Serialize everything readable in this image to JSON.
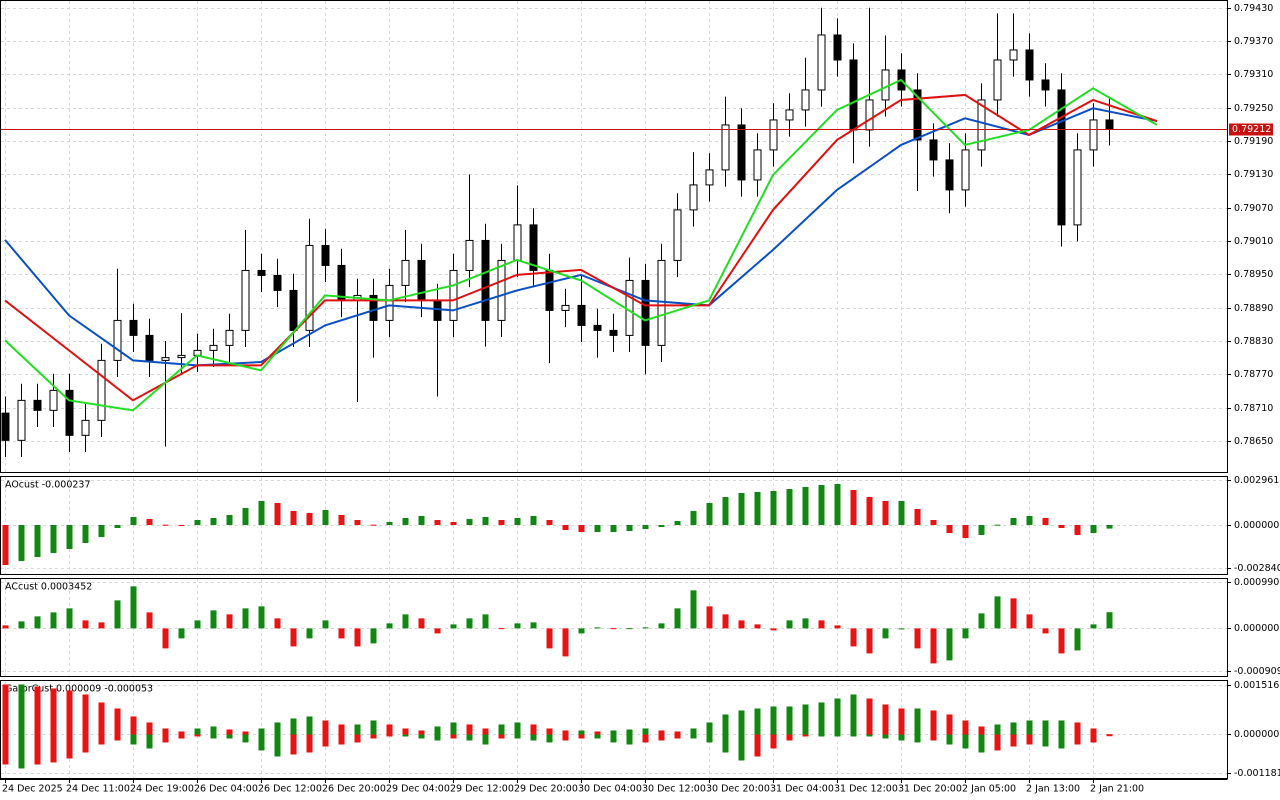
{
  "time_axis": {
    "labels": [
      "24 Dec 2025",
      "24 Dec 11:00",
      "24 Dec 19:00",
      "26 Dec 04:00",
      "26 Dec 12:00",
      "26 Dec 20:00",
      "29 Dec 04:00",
      "29 Dec 12:00",
      "29 Dec 20:00",
      "30 Dec 04:00",
      "30 Dec 12:00",
      "30 Dec 20:00",
      "31 Dec 04:00",
      "31 Dec 12:00",
      "31 Dec 20:00",
      "2 Jan 05:00",
      "2 Jan 13:00",
      "2 Jan 21:00"
    ]
  },
  "chart_data": [
    {
      "type": "candlestick",
      "ylim": [
        0.78594,
        0.79444
      ],
      "yticks": [
        {
          "value": 0.7943,
          "label": "0.79430"
        },
        {
          "value": 0.7937,
          "label": "0.79370"
        },
        {
          "value": 0.7931,
          "label": "0.79310"
        },
        {
          "value": 0.7925,
          "label": "0.79250"
        },
        {
          "value": 0.7919,
          "label": "0.79190"
        },
        {
          "value": 0.7913,
          "label": "0.79130"
        },
        {
          "value": 0.7907,
          "label": "0.79070"
        },
        {
          "value": 0.7901,
          "label": "0.79010"
        },
        {
          "value": 0.7895,
          "label": "0.78950"
        },
        {
          "value": 0.7889,
          "label": "0.78890"
        },
        {
          "value": 0.7883,
          "label": "0.78830"
        },
        {
          "value": 0.7877,
          "label": "0.78770"
        },
        {
          "value": 0.7871,
          "label": "0.78710"
        },
        {
          "value": 0.7865,
          "label": "0.78650"
        }
      ],
      "grid": true,
      "up_color": "#ffffff",
      "down_color": "#000000",
      "open": [
        0.787,
        0.78651,
        0.78723,
        0.78705,
        0.78741,
        0.7866,
        0.78687,
        0.78795,
        0.78867,
        0.7884,
        0.78795,
        0.788,
        0.78804,
        0.78813,
        0.78822,
        0.78849,
        0.78957,
        0.78948,
        0.78921,
        0.78849,
        0.79002,
        0.78966,
        0.78903,
        0.78912,
        0.78867,
        0.7893,
        0.78975,
        0.78903,
        0.78867,
        0.78957,
        0.79011,
        0.78867,
        0.78975,
        0.79039,
        0.78957,
        0.78885,
        0.78894,
        0.78858,
        0.78849,
        0.7884,
        0.78939,
        0.78822,
        0.78975,
        0.79066,
        0.79111,
        0.79138,
        0.79219,
        0.7912,
        0.79174,
        0.79228,
        0.79246,
        0.79282,
        0.79381,
        0.79336,
        0.7921,
        0.79264,
        0.79318,
        0.79282,
        0.79192,
        0.79156,
        0.79102,
        0.79174,
        0.79264,
        0.79336,
        0.79354,
        0.793,
        0.79282,
        0.79039,
        0.79174,
        0.79228
      ],
      "high": [
        0.7873,
        0.78753,
        0.78753,
        0.78771,
        0.78771,
        0.78717,
        0.78825,
        0.7896,
        0.78897,
        0.7887,
        0.7883,
        0.7888,
        0.78843,
        0.78852,
        0.78879,
        0.7903,
        0.78987,
        0.78978,
        0.78951,
        0.7905,
        0.79032,
        0.78996,
        0.78942,
        0.78942,
        0.7896,
        0.7903,
        0.79005,
        0.78933,
        0.78987,
        0.7913,
        0.79041,
        0.79005,
        0.7911,
        0.79069,
        0.78987,
        0.78924,
        0.7895,
        0.78888,
        0.78879,
        0.7898,
        0.78969,
        0.79005,
        0.79096,
        0.7917,
        0.79168,
        0.7927,
        0.79249,
        0.79204,
        0.79258,
        0.79276,
        0.7934,
        0.7943,
        0.79411,
        0.79366,
        0.7943,
        0.7938,
        0.79348,
        0.79312,
        0.79222,
        0.79186,
        0.79204,
        0.79294,
        0.7942,
        0.7942,
        0.79384,
        0.7933,
        0.79312,
        0.79204,
        0.79258,
        0.7927
      ],
      "low": [
        0.78621,
        0.78621,
        0.78675,
        0.78675,
        0.7863,
        0.7863,
        0.78657,
        0.78765,
        0.7881,
        0.78765,
        0.7864,
        0.7877,
        0.78774,
        0.78783,
        0.78792,
        0.78819,
        0.78918,
        0.78891,
        0.78819,
        0.78819,
        0.78936,
        0.78873,
        0.7872,
        0.788,
        0.78837,
        0.789,
        0.78873,
        0.7873,
        0.78837,
        0.78927,
        0.7882,
        0.78837,
        0.78945,
        0.78927,
        0.7879,
        0.78855,
        0.78828,
        0.788,
        0.7881,
        0.7881,
        0.7877,
        0.78792,
        0.78945,
        0.79036,
        0.79081,
        0.79108,
        0.7909,
        0.7909,
        0.79144,
        0.79198,
        0.79216,
        0.79252,
        0.79306,
        0.7915,
        0.7918,
        0.79234,
        0.79252,
        0.791,
        0.79126,
        0.7906,
        0.79072,
        0.79144,
        0.79234,
        0.79306,
        0.7927,
        0.79252,
        0.79,
        0.79009,
        0.79144,
        0.79182
      ],
      "close": [
        0.78651,
        0.78723,
        0.78705,
        0.78741,
        0.7866,
        0.78687,
        0.78795,
        0.78867,
        0.7884,
        0.78795,
        0.788,
        0.78804,
        0.78813,
        0.78822,
        0.78849,
        0.78957,
        0.78948,
        0.78921,
        0.78849,
        0.79002,
        0.78966,
        0.78903,
        0.78912,
        0.78867,
        0.7893,
        0.78975,
        0.78903,
        0.78867,
        0.78957,
        0.79011,
        0.78867,
        0.78975,
        0.79039,
        0.78957,
        0.78885,
        0.78894,
        0.78858,
        0.78849,
        0.7884,
        0.78939,
        0.78822,
        0.78975,
        0.79066,
        0.79111,
        0.79138,
        0.79219,
        0.7912,
        0.79174,
        0.79228,
        0.79246,
        0.79282,
        0.79381,
        0.79336,
        0.7921,
        0.79264,
        0.79318,
        0.79282,
        0.79192,
        0.79156,
        0.79102,
        0.79174,
        0.79264,
        0.79336,
        0.79354,
        0.793,
        0.79282,
        0.79039,
        0.79174,
        0.79228,
        0.79212
      ],
      "lines": [
        {
          "color": "#0b4fc4",
          "x": [
            0,
            4,
            8,
            12,
            16,
            20,
            24,
            28,
            32,
            36,
            40,
            44,
            48,
            52,
            56,
            60,
            64,
            68,
            72
          ],
          "values": [
            0.79012,
            0.78876,
            0.78795,
            0.78786,
            0.78792,
            0.78858,
            0.78894,
            0.78885,
            0.78921,
            0.78949,
            0.78903,
            0.78894,
            0.78994,
            0.79102,
            0.79183,
            0.79231,
            0.79201,
            0.79249,
            0.79226
          ]
        },
        {
          "color": "#e01010",
          "x": [
            0,
            4,
            8,
            12,
            16,
            20,
            24,
            28,
            32,
            36,
            40,
            44,
            48,
            52,
            56,
            60,
            64,
            68,
            72
          ],
          "values": [
            0.78903,
            0.78813,
            0.78723,
            0.78786,
            0.78786,
            0.78903,
            0.78903,
            0.78903,
            0.78949,
            0.78958,
            0.78894,
            0.78894,
            0.79066,
            0.79192,
            0.79264,
            0.79273,
            0.79201,
            0.79264,
            0.79226
          ]
        },
        {
          "color": "#22dd22",
          "x": [
            0,
            4,
            8,
            12,
            16,
            20,
            24,
            28,
            32,
            36,
            40,
            44,
            48,
            52,
            56,
            60,
            64,
            68,
            72
          ],
          "values": [
            0.78831,
            0.78723,
            0.78705,
            0.78804,
            0.78777,
            0.78912,
            0.78903,
            0.7893,
            0.78976,
            0.78939,
            0.78867,
            0.78903,
            0.79129,
            0.79246,
            0.793,
            0.79183,
            0.7921,
            0.79285,
            0.79219
          ]
        }
      ],
      "current_price": {
        "value": 0.79212,
        "label": "0.79212",
        "color": "#c81010"
      }
    },
    {
      "type": "bar",
      "title": "AOcust -0.000237",
      "ylim": [
        -0.00323,
        0.00323
      ],
      "yticks": [
        0.002961,
        {
          "value": 0,
          "label": "0.000000"
        },
        {
          "value": -0.00284,
          "label": "-0.002840"
        }
      ],
      "up_color": "#118811",
      "down_color": "#ee1111",
      "values": [
        -0.002636,
        -0.002372,
        -0.002109,
        -0.001845,
        -0.001582,
        -0.001186,
        -0.000791,
        -0.000198,
        0.000527,
        0.000395,
        2e-05,
        -6.6e-05,
        0.00033,
        0.000461,
        0.000659,
        0.00112,
        0.001582,
        0.00145,
        0.000923,
        0.000791,
        0.000989,
        0.000659,
        0.00033,
        2e-05,
        0.000198,
        0.000461,
        0.000593,
        0.00033,
        0.000198,
        0.000395,
        0.000527,
        0.00033,
        0.000461,
        0.000593,
        0.00033,
        -0.00033,
        -0.000461,
        -0.000461,
        -0.000461,
        -0.000395,
        -0.000264,
        -0.000132,
        0.000264,
        0.000923,
        0.00145,
        0.001845,
        0.002109,
        0.002175,
        0.002241,
        0.002372,
        0.002504,
        0.002636,
        0.002702,
        0.002307,
        0.001845,
        0.001582,
        0.001582,
        0.001054,
        0.00033,
        -0.000527,
        -0.000857,
        -0.000659,
        2e-05,
        0.000461,
        0.000593,
        0.000461,
        -0.000198,
        -0.000659,
        -0.000527,
        -0.000237
      ]
    },
    {
      "type": "bar",
      "title": "ACcust 0.0003452",
      "ylim": [
        -0.001016,
        0.001075
      ],
      "yticks": [
        0.0009902,
        {
          "value": 0,
          "label": "0.0000000"
        },
        -0.0009095
      ],
      "up_color": "#118811",
      "down_color": "#ee1111",
      "values": [
        6.4e-05,
        0.0001494,
        0.0002562,
        0.0003416,
        0.000427,
        0.0001708,
        0.0001281,
        0.0005978,
        0.0008967,
        0.0003416,
        -0.000427,
        -0.0002135,
        0.0001708,
        0.0003843,
        0.0002989,
        0.000427,
        0.0004697,
        0.0002135,
        -0.0003843,
        -0.0002135,
        0.0001708,
        -0.0002135,
        -0.0003843,
        -0.0003203,
        0.0001068,
        0.0002989,
        0.0002135,
        -0.0001068,
        8.54e-05,
        0.0002135,
        0.0002989,
        5e-06,
        0.0001068,
        0.0001281,
        -0.000427,
        -0.0005978,
        -0.0001068,
        2.14e-05,
        5e-06,
        5e-06,
        2.14e-05,
        0.0001068,
        0.000427,
        0.0008113,
        0.0004697,
        0.0002989,
        0.0001708,
        8.54e-05,
        -4.27e-05,
        0.0001708,
        0.0002135,
        0.0001708,
        6.4e-05,
        -0.0003843,
        -0.0005338,
        -0.0002135,
        -2.14e-05,
        -0.000427,
        -0.0007473,
        -0.0006832,
        -0.0002135,
        0.0003203,
        0.0006832,
        0.0006405,
        0.0002989,
        -0.0001068,
        -0.0005338,
        -0.0004697,
        8.54e-05,
        0.0003452
      ]
    },
    {
      "type": "gator",
      "title": "GatorCust 0.000009 -0.000053",
      "ylim": [
        -0.001334,
        0.00167
      ],
      "yticks": [
        0.001516,
        {
          "value": 0,
          "label": "0.000000"
        },
        -0.001181
      ],
      "up_color": "#118811",
      "down_color": "#ee1111",
      "upper": [
        0.001533,
        0.001533,
        0.001471,
        0.00141,
        0.001349,
        0.001226,
        0.000981,
        0.000797,
        0.000552,
        0.000368,
        0.000184,
        9.2e-05,
        0.000184,
        0.000245,
        0.000153,
        9.2e-05,
        0.000184,
        0.000368,
        0.00049,
        0.000552,
        0.000429,
        0.000307,
        0.000307,
        0.000429,
        0.000307,
        0.000184,
        0.000123,
        0.000245,
        0.000368,
        0.000307,
        0.000184,
        0.000307,
        0.000368,
        0.000307,
        0.000184,
        0.000123,
        0.000123,
        9.2e-05,
        0.000123,
        0.000153,
        0.000184,
        0.000123,
        9.2e-05,
        0.000184,
        0.000368,
        0.000613,
        0.000736,
        0.000797,
        0.000858,
        0.000858,
        0.00092,
        0.000981,
        0.001103,
        0.001226,
        0.001103,
        0.00092,
        0.000797,
        0.000797,
        0.000736,
        0.000613,
        0.000429,
        0.000245,
        0.000307,
        0.000368,
        0.000429,
        0.000429,
        0.000429,
        0.000368,
        0.000184,
        9e-06
      ],
      "lower": [
        -0.00092,
        -0.001042,
        -0.00092,
        -0.000858,
        -0.000736,
        -0.000552,
        -0.000307,
        -0.000184,
        -0.000307,
        -0.000429,
        -0.000245,
        -0.000123,
        -6.1e-05,
        -0.000123,
        -0.000123,
        -0.000245,
        -0.00049,
        -0.000674,
        -0.000613,
        -0.000552,
        -0.000368,
        -0.000307,
        -0.000245,
        -0.000123,
        -6.1e-05,
        -6.1e-05,
        -0.000123,
        -0.000184,
        -0.000123,
        -0.000184,
        -0.000307,
        -0.000123,
        -0.000123,
        -0.000184,
        -0.000245,
        -0.000184,
        -0.000123,
        -0.000123,
        -0.000245,
        -0.000307,
        -0.000245,
        -0.000184,
        -0.000123,
        -0.000123,
        -0.000245,
        -0.000552,
        -0.000797,
        -0.000674,
        -0.000429,
        -0.000184,
        -6.1e-05,
        -6.1e-05,
        -6.1e-05,
        -6.1e-05,
        -6.1e-05,
        -0.000123,
        -0.000184,
        -0.000245,
        -0.000184,
        -0.000307,
        -0.000429,
        -0.000552,
        -0.00049,
        -0.000368,
        -0.000307,
        -0.000368,
        -0.000429,
        -0.000307,
        -0.000245,
        -5.3e-05
      ]
    }
  ]
}
